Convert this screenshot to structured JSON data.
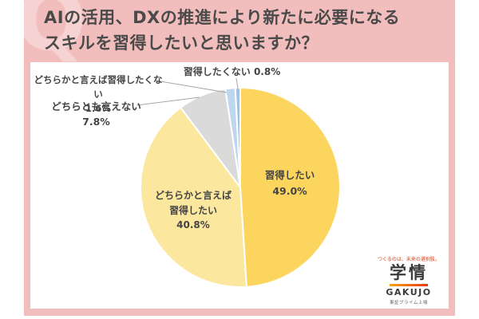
{
  "header": {
    "q_mark": "Q",
    "title_line1": "AIの活用、DXの推進により新たに必要になる",
    "title_line2": "スキルを習得したいと思いますか？"
  },
  "chart_data": {
    "type": "pie",
    "title": "AIの活用、DXの推進により新たに必要になるスキルを習得したいと思いますか？",
    "unit": "%",
    "start_angle": "12-oclock",
    "direction": "clockwise",
    "slices": [
      {
        "label": "習得したい",
        "value": 49.0,
        "display": "49.0%",
        "color": "#FCD55F",
        "text_lines": [
          "習得したい",
          "49.0%"
        ],
        "label_placement": "inside"
      },
      {
        "label": "どちらかと言えば習得したい",
        "value": 40.8,
        "display": "40.8%",
        "color": "#FCE79F",
        "text_lines": [
          "どちらかと言えば",
          "習得したい",
          "40.8%"
        ],
        "label_placement": "inside"
      },
      {
        "label": "どちらとも言えない",
        "value": 7.8,
        "display": "7.8%",
        "color": "#DADADA",
        "text_lines": [
          "どちらとも言えない",
          "7.8%"
        ],
        "label_placement": "callout"
      },
      {
        "label": "どちらかと言えば習得したくない",
        "value": 1.6,
        "display": "1.6%",
        "color": "#BDD7EE",
        "text_lines": [
          "どちらかと言えば習得したくない",
          "1.6%"
        ],
        "label_placement": "callout"
      },
      {
        "label": "習得したくない",
        "value": 0.8,
        "display": "0.8%",
        "color": "#9DC3E6",
        "text_lines": [
          "習得したくない 0.8%"
        ],
        "label_placement": "callout"
      }
    ]
  },
  "logo": {
    "slogan": "つくるのは、未来の選択肢。",
    "brand": "学情",
    "brand_latin": "GAKUJO",
    "listing": "東証プライム上場"
  },
  "colors": {
    "frame_pink": "#F2BDBD",
    "watermark_pink": "#F7D2D2",
    "title_text": "#4A4A4A",
    "label_text": "#444444",
    "leader_line": "#A6A6A6",
    "logo_red": "#E8380D",
    "logo_dark": "#3A3A3A",
    "slice_stroke": "#FFFFFF"
  }
}
